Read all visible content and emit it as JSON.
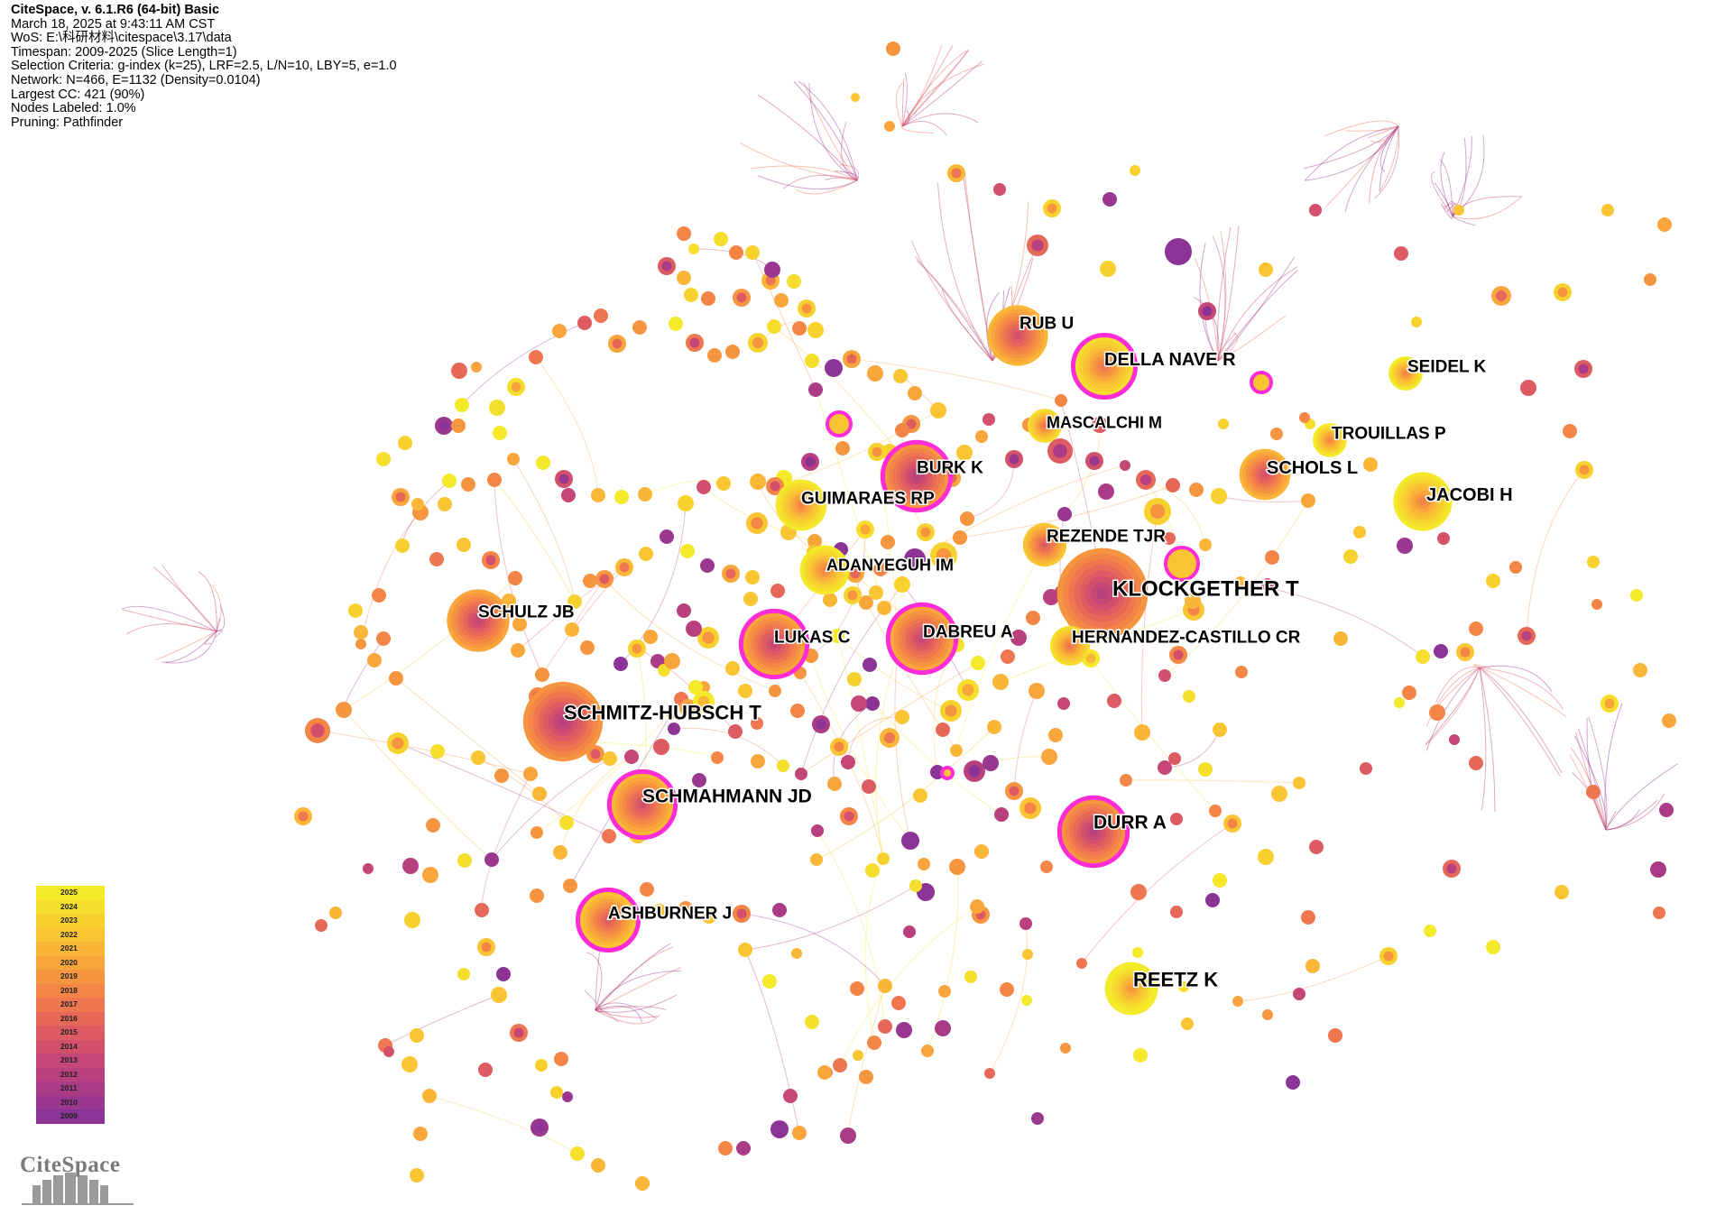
{
  "info_lines": [
    "CiteSpace, v. 6.1.R6 (64-bit) Basic",
    "March 18, 2025 at 9:43:11 AM CST",
    "WoS: E:\\科研材料\\citespace\\3.17\\data",
    "Timespan: 2009-2025 (Slice Length=1)",
    "Selection Criteria: g-index (k=25), LRF=2.5, L/N=10, LBY=5, e=1.0",
    "Network: N=466, E=1132 (Density=0.0104)",
    "Largest CC: 421 (90%)",
    "Nodes Labeled: 1.0%",
    "Pruning: Pathfinder"
  ],
  "legend": {
    "years": [
      "2025",
      "2024",
      "2023",
      "2022",
      "2021",
      "2020",
      "2019",
      "2018",
      "2017",
      "2016",
      "2015",
      "2014",
      "2013",
      "2012",
      "2011",
      "2010",
      "2009"
    ],
    "colors": [
      "#f4ea2a",
      "#f6df2c",
      "#f7d22f",
      "#f9c533",
      "#f9b637",
      "#f8a63b",
      "#f69540",
      "#f38547",
      "#ee7650",
      "#e66858",
      "#dd5b62",
      "#d2506b",
      "#c54775",
      "#b8407e",
      "#a93b87",
      "#9a378f",
      "#8b3496"
    ]
  },
  "logo_text": "CiteSpace",
  "nodes": [
    {
      "label": "KLOCKGETHER T",
      "size": 48,
      "year": "2016",
      "burst": false
    },
    {
      "label": "SCHMITZ-HUBSCH T",
      "size": 42,
      "year": "2016",
      "burst": false
    },
    {
      "label": "SCHULZ JB",
      "size": 33,
      "year": "2017",
      "burst": false
    },
    {
      "label": "RUB U",
      "size": 32,
      "year": "2018",
      "burst": false
    },
    {
      "label": "REETZ K",
      "size": 28,
      "year": "2023",
      "burst": false
    },
    {
      "label": "JACOBI H",
      "size": 31,
      "year": "2022",
      "burst": false
    },
    {
      "label": "DURR A",
      "size": 34,
      "year": "2016",
      "burst": true
    },
    {
      "label": "DABREU A",
      "size": 34,
      "year": "2017",
      "burst": true
    },
    {
      "label": "LUKAS C",
      "size": 33,
      "year": "2017",
      "burst": true
    },
    {
      "label": "BURK K",
      "size": 34,
      "year": "2016",
      "burst": true
    },
    {
      "label": "SCHMAHMANN JD",
      "size": 33,
      "year": "2018",
      "burst": true
    },
    {
      "label": "ASHBURNER J",
      "size": 30,
      "year": "2019",
      "burst": true
    },
    {
      "label": "DELLA NAVE R",
      "size": 31,
      "year": "2021",
      "burst": true
    },
    {
      "label": "SCHOLS L",
      "size": 27,
      "year": "2018",
      "burst": false
    },
    {
      "label": "GUIMARAES RP",
      "size": 27,
      "year": "2022",
      "burst": false
    },
    {
      "label": "HERNANDEZ-CASTILLO CR",
      "size": 21,
      "year": "2021",
      "burst": false
    },
    {
      "label": "REZENDE TJR",
      "size": 23,
      "year": "2019",
      "burst": false
    },
    {
      "label": "ADANYEGUH IM",
      "size": 26,
      "year": "2022",
      "burst": false
    },
    {
      "label": "MASCALCHI M",
      "size": 18,
      "year": "2021",
      "burst": false
    },
    {
      "label": "TROUILLAS P",
      "size": 18,
      "year": "2022",
      "burst": false
    },
    {
      "label": "SEIDEL K",
      "size": 18,
      "year": "2022",
      "burst": false
    }
  ]
}
